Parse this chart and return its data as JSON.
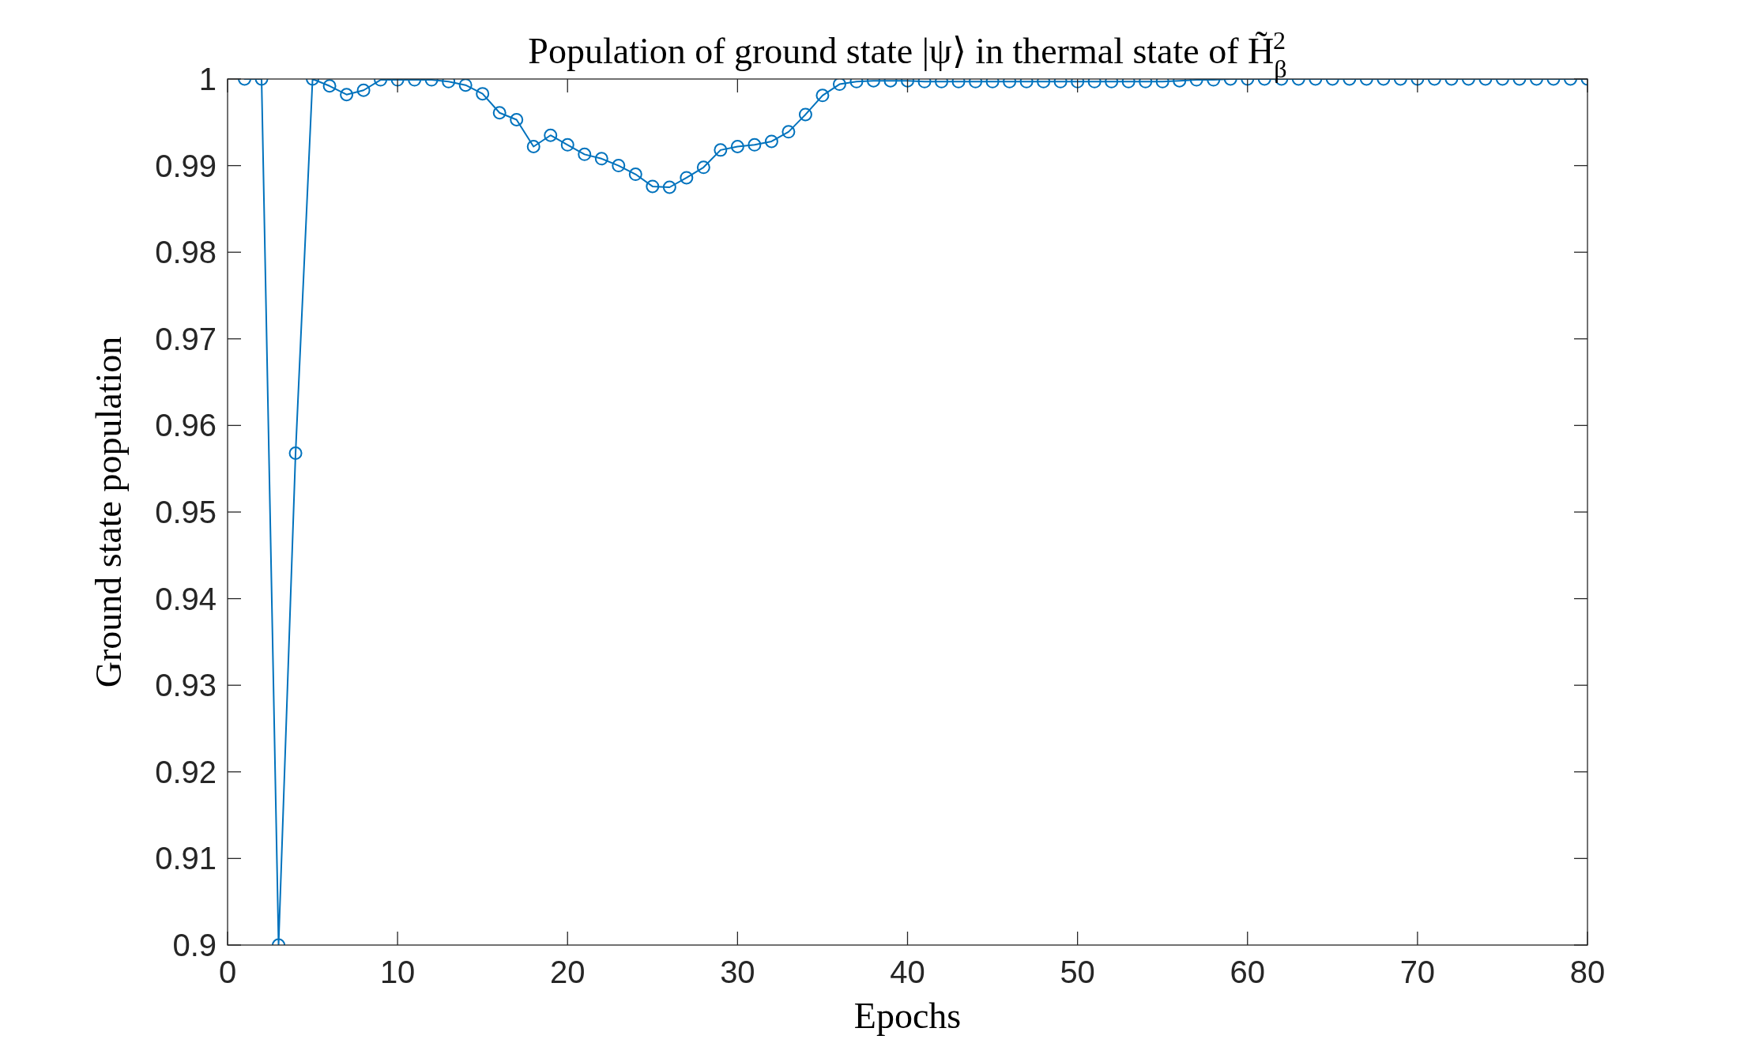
{
  "chart_data": {
    "type": "line",
    "title": "Population of ground state |ψ⟩ in thermal state of H̃$_{β}$$^{2}$",
    "xlabel": "Epochs",
    "ylabel": "Ground state population",
    "x": [
      1,
      2,
      3,
      4,
      5,
      6,
      7,
      8,
      9,
      10,
      11,
      12,
      13,
      14,
      15,
      16,
      17,
      18,
      19,
      20,
      21,
      22,
      23,
      24,
      25,
      26,
      27,
      28,
      29,
      30,
      31,
      32,
      33,
      34,
      35,
      36,
      37,
      38,
      39,
      40,
      41,
      42,
      43,
      44,
      45,
      46,
      47,
      48,
      49,
      50,
      51,
      52,
      53,
      54,
      55,
      56,
      57,
      58,
      59,
      60,
      61,
      62,
      63,
      64,
      65,
      66,
      67,
      68,
      69,
      70,
      71,
      72,
      73,
      74,
      75,
      76,
      77,
      78,
      79,
      80
    ],
    "series": [
      {
        "color": "#0072bd",
        "values": [
          1,
          1,
          0.9,
          0.9568,
          1,
          0.9992,
          0.9982,
          0.9987,
          0.9999,
          0.9999,
          0.9999,
          0.9999,
          0.9997,
          0.9993,
          0.9983,
          0.9961,
          0.9953,
          0.9922,
          0.9935,
          0.9924,
          0.9913,
          0.9908,
          0.99,
          0.989,
          0.9876,
          0.9875,
          0.9886,
          0.9898,
          0.9918,
          0.9922,
          0.9924,
          0.9928,
          0.9939,
          0.9959,
          0.9981,
          0.9994,
          0.9997,
          0.9998,
          0.9998,
          0.9998,
          0.9997,
          0.9997,
          0.9997,
          0.9997,
          0.9997,
          0.9997,
          0.9997,
          0.9997,
          0.9997,
          0.9997,
          0.9997,
          0.9997,
          0.9997,
          0.9997,
          0.9997,
          0.9998,
          0.9999,
          0.9999,
          1,
          1,
          1,
          1,
          1,
          1,
          1,
          1,
          1,
          1,
          1,
          1,
          1,
          1,
          1,
          1,
          1,
          1,
          1,
          1,
          1,
          1
        ]
      }
    ],
    "xlim": [
      0,
      80
    ],
    "xticks": [
      0,
      10,
      20,
      30,
      40,
      50,
      60,
      70,
      80
    ],
    "ylim": [
      0.9,
      1
    ],
    "yticks": [
      0.9,
      0.91,
      0.92,
      0.93,
      0.94,
      0.95,
      0.96,
      0.97,
      0.98,
      0.99,
      1
    ],
    "grid": false,
    "marker": "circle",
    "line_style": "solid"
  }
}
